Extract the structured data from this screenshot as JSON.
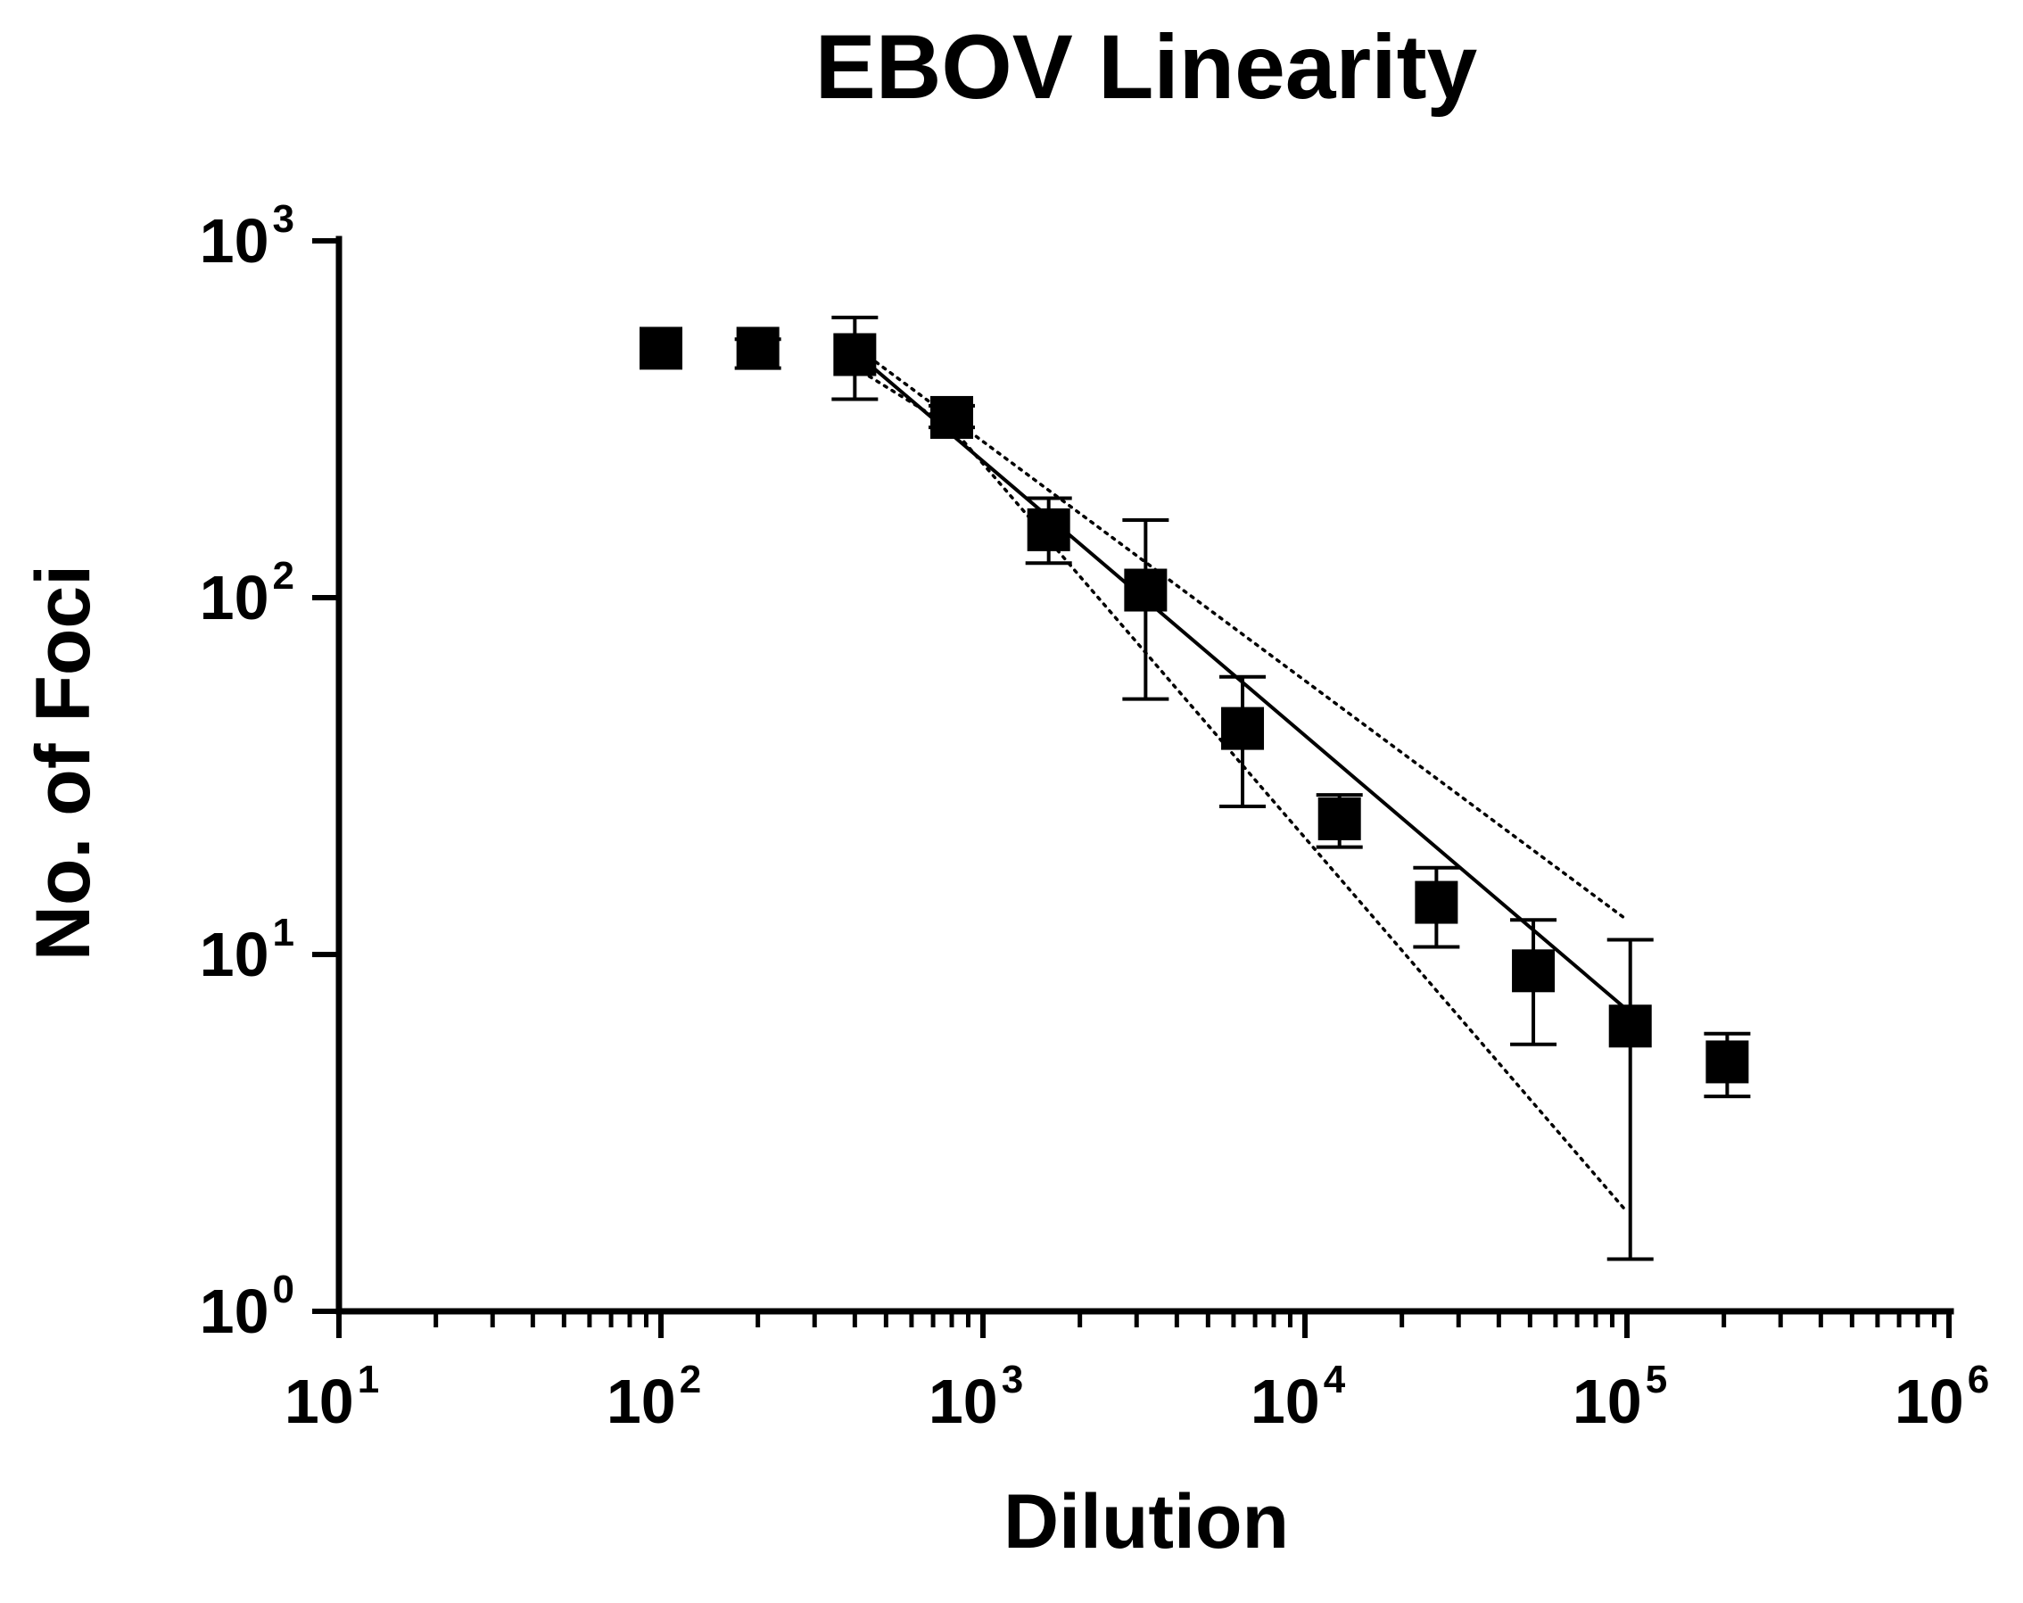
{
  "chart_data": {
    "type": "scatter",
    "title": "EBOV Linearity",
    "xlabel": "Dilution",
    "ylabel": "No. of Foci",
    "xscale": "log",
    "yscale": "log",
    "xlim": [
      10,
      1000000
    ],
    "ylim": [
      1,
      1000
    ],
    "x_ticks": [
      {
        "value": 10,
        "base": "10",
        "exp": "1"
      },
      {
        "value": 100,
        "base": "10",
        "exp": "2"
      },
      {
        "value": 1000,
        "base": "10",
        "exp": "3"
      },
      {
        "value": 10000,
        "base": "10",
        "exp": "4"
      },
      {
        "value": 100000,
        "base": "10",
        "exp": "5"
      },
      {
        "value": 1000000,
        "base": "10",
        "exp": "6"
      }
    ],
    "y_ticks": [
      {
        "value": 1,
        "base": "10",
        "exp": "0"
      },
      {
        "value": 10,
        "base": "10",
        "exp": "1"
      },
      {
        "value": 100,
        "base": "10",
        "exp": "2"
      },
      {
        "value": 1000,
        "base": "10",
        "exp": "3"
      }
    ],
    "series": [
      {
        "name": "EBOV",
        "marker": "square",
        "points": [
          {
            "x": 100,
            "y": 500,
            "err_low": 500,
            "err_high": 500
          },
          {
            "x": 200,
            "y": 500,
            "err_low": 440,
            "err_high": 530
          },
          {
            "x": 400,
            "y": 480,
            "err_low": 360,
            "err_high": 610
          },
          {
            "x": 800,
            "y": 320,
            "err_low": 300,
            "err_high": 345
          },
          {
            "x": 1600,
            "y": 155,
            "err_low": 125,
            "err_high": 190
          },
          {
            "x": 3200,
            "y": 105,
            "err_low": 52,
            "err_high": 165
          },
          {
            "x": 6400,
            "y": 43,
            "err_low": 26,
            "err_high": 60
          },
          {
            "x": 12800,
            "y": 24,
            "err_low": 20,
            "err_high": 28
          },
          {
            "x": 25600,
            "y": 14,
            "err_low": 10.5,
            "err_high": 17.5
          },
          {
            "x": 51200,
            "y": 9,
            "err_low": 5.6,
            "err_high": 12.5
          },
          {
            "x": 102400,
            "y": 6.3,
            "err_low": 1.4,
            "err_high": 11
          },
          {
            "x": 204800,
            "y": 5,
            "err_low": 4,
            "err_high": 6
          }
        ]
      }
    ],
    "fit": {
      "type": "linear on log-log",
      "x_range": [
        420,
        100000
      ],
      "line": {
        "x": [
          420,
          100000
        ],
        "y": [
          470,
          7
        ]
      },
      "confidence_band": {
        "upper": {
          "x": [
            420,
            1600,
            100000
          ],
          "y": [
            490,
            200,
            12.5
          ]
        },
        "lower": {
          "x": [
            420,
            800,
            100000
          ],
          "y": [
            430,
            300,
            1.9
          ]
        }
      }
    }
  }
}
